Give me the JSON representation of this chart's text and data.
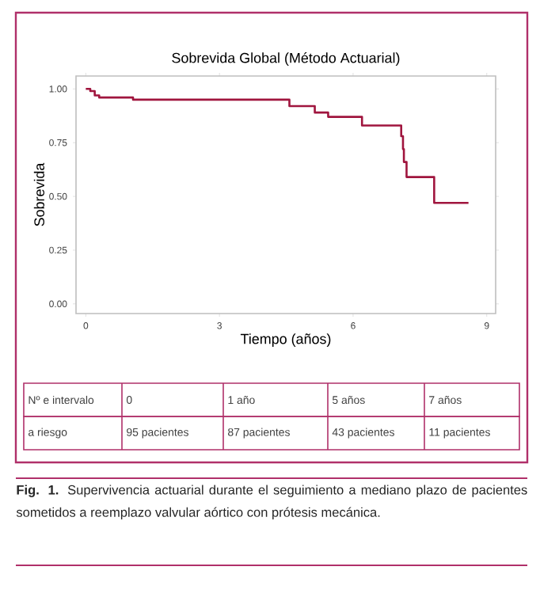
{
  "chart_data": {
    "type": "step",
    "title": "Sobrevida Global (Método Actuarial)",
    "xlabel": "Tiempo (años)",
    "ylabel": "Sobrevida",
    "x": [
      0,
      0.1,
      0.2,
      0.3,
      1.06,
      4.57,
      5.14,
      5.44,
      6.2,
      7.08,
      7.12,
      7.14,
      7.2,
      7.82,
      8.59
    ],
    "series": [
      {
        "color": "#a0153e",
        "values": [
          1,
          0.99,
          0.97,
          0.96,
          0.95,
          0.92,
          0.89,
          0.87,
          0.83,
          0.78,
          0.72,
          0.66,
          0.59,
          0.47,
          0.47
        ]
      }
    ],
    "xlim": [
      -0.22,
      9.2
    ],
    "ylim": [
      -0.045,
      1.06
    ],
    "xticks": [
      0,
      3,
      6,
      9
    ],
    "yticks": [
      {
        "value": 0,
        "label": "0.00"
      },
      {
        "value": 0.25,
        "label": "0.25"
      },
      {
        "value": 0.5,
        "label": "0.50"
      },
      {
        "value": 0.75,
        "label": "0.75"
      },
      {
        "value": 1,
        "label": "1.00"
      }
    ],
    "line_style": "solid",
    "marker": "none",
    "annotations": [
      "Nº e intervalo",
      "0",
      "1 año",
      "5 años",
      "7 años",
      "a riesgo",
      "95 pacientes",
      "87 pacientes",
      "43 pacientes",
      "11 pacientes",
      "**Fig. 1.** Supervivencia actuarial durante el seguimiento a mediano plazo de pacientes sometidos a reemplazo valvular aórtico con prótesis mecánica."
    ]
  }
}
